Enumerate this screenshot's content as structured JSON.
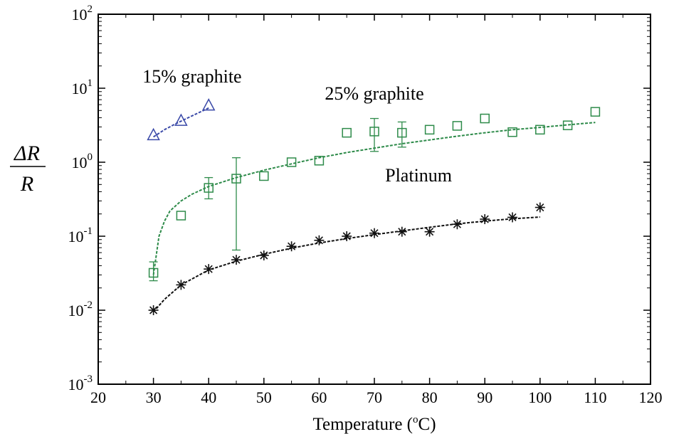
{
  "chart_data": {
    "type": "scatter",
    "title": "",
    "xlabel_prefix": "Temperature (",
    "xlabel_sup": "o",
    "xlabel_suffix": "C)",
    "ylabel_top": "ΔR",
    "ylabel_bottom": "R",
    "xlim": [
      20,
      120
    ],
    "ylim": [
      0.001,
      100
    ],
    "yscale": "log",
    "x_ticks": [
      20,
      30,
      40,
      50,
      60,
      70,
      80,
      90,
      100,
      110,
      120
    ],
    "x_tick_labels": [
      "20",
      "30",
      "40",
      "50",
      "60",
      "70",
      "80",
      "90",
      "100",
      "110",
      "120"
    ],
    "y_ticks": [
      0.001,
      0.01,
      0.1,
      1,
      10,
      100
    ],
    "y_tick_labels": [
      {
        "base": "10",
        "exp": "-3"
      },
      {
        "base": "10",
        "exp": "-2"
      },
      {
        "base": "10",
        "exp": "-1"
      },
      {
        "base": "10",
        "exp": "0"
      },
      {
        "base": "10",
        "exp": "1"
      },
      {
        "base": "10",
        "exp": "2"
      }
    ],
    "grid": false,
    "series": [
      {
        "name": "15% graphite",
        "marker": "triangle",
        "color": "#3a49a8",
        "x": [
          30,
          35,
          40
        ],
        "y": [
          2.3,
          3.6,
          5.8
        ],
        "fit_x": [
          30,
          32,
          34,
          36,
          38,
          40
        ],
        "fit_y": [
          2.2,
          2.75,
          3.3,
          3.9,
          4.6,
          5.4
        ]
      },
      {
        "name": "25% graphite",
        "marker": "square",
        "color": "#2e8b4a",
        "x": [
          30,
          35,
          40,
          45,
          50,
          55,
          60,
          65,
          70,
          75,
          80,
          85,
          90,
          95,
          100,
          105,
          110
        ],
        "y": [
          0.032,
          0.19,
          0.45,
          0.6,
          0.65,
          1.0,
          1.05,
          2.5,
          2.6,
          2.5,
          2.75,
          3.1,
          3.9,
          2.55,
          2.75,
          3.15,
          4.8
        ],
        "error_low": [
          0.025,
          null,
          0.32,
          0.065,
          null,
          null,
          null,
          null,
          1.4,
          1.6,
          null,
          null,
          null,
          null,
          null,
          null,
          null
        ],
        "error_high": [
          0.045,
          null,
          0.62,
          1.15,
          null,
          null,
          null,
          null,
          3.9,
          3.5,
          null,
          null,
          null,
          null,
          null,
          null,
          null
        ],
        "fit_x": [
          30,
          31,
          32,
          33,
          35,
          37,
          40,
          45,
          50,
          55,
          60,
          65,
          70,
          75,
          80,
          85,
          90,
          95,
          100,
          105,
          110
        ],
        "fit_y": [
          0.03,
          0.1,
          0.16,
          0.22,
          0.3,
          0.37,
          0.47,
          0.62,
          0.78,
          0.95,
          1.15,
          1.35,
          1.55,
          1.78,
          2.0,
          2.25,
          2.5,
          2.75,
          2.95,
          3.2,
          3.45
        ]
      },
      {
        "name": "Platinum",
        "marker": "asterisk",
        "color": "#111111",
        "x": [
          30,
          35,
          40,
          45,
          50,
          55,
          60,
          65,
          70,
          75,
          80,
          85,
          90,
          95,
          100
        ],
        "y": [
          0.01,
          0.022,
          0.036,
          0.048,
          0.055,
          0.073,
          0.088,
          0.1,
          0.11,
          0.115,
          0.115,
          0.145,
          0.17,
          0.18,
          0.245
        ],
        "fit_x": [
          30,
          32,
          35,
          40,
          45,
          50,
          55,
          60,
          65,
          70,
          75,
          80,
          85,
          90,
          95,
          100
        ],
        "fit_y": [
          0.0095,
          0.014,
          0.022,
          0.035,
          0.046,
          0.057,
          0.069,
          0.081,
          0.093,
          0.105,
          0.118,
          0.132,
          0.147,
          0.16,
          0.172,
          0.182
        ]
      }
    ],
    "annotations": [
      {
        "text": "15% graphite",
        "x": 37,
        "y": 12
      },
      {
        "text": "25% graphite",
        "x": 70,
        "y": 7
      },
      {
        "text": "Platinum",
        "x": 78,
        "y": 0.55
      }
    ]
  }
}
